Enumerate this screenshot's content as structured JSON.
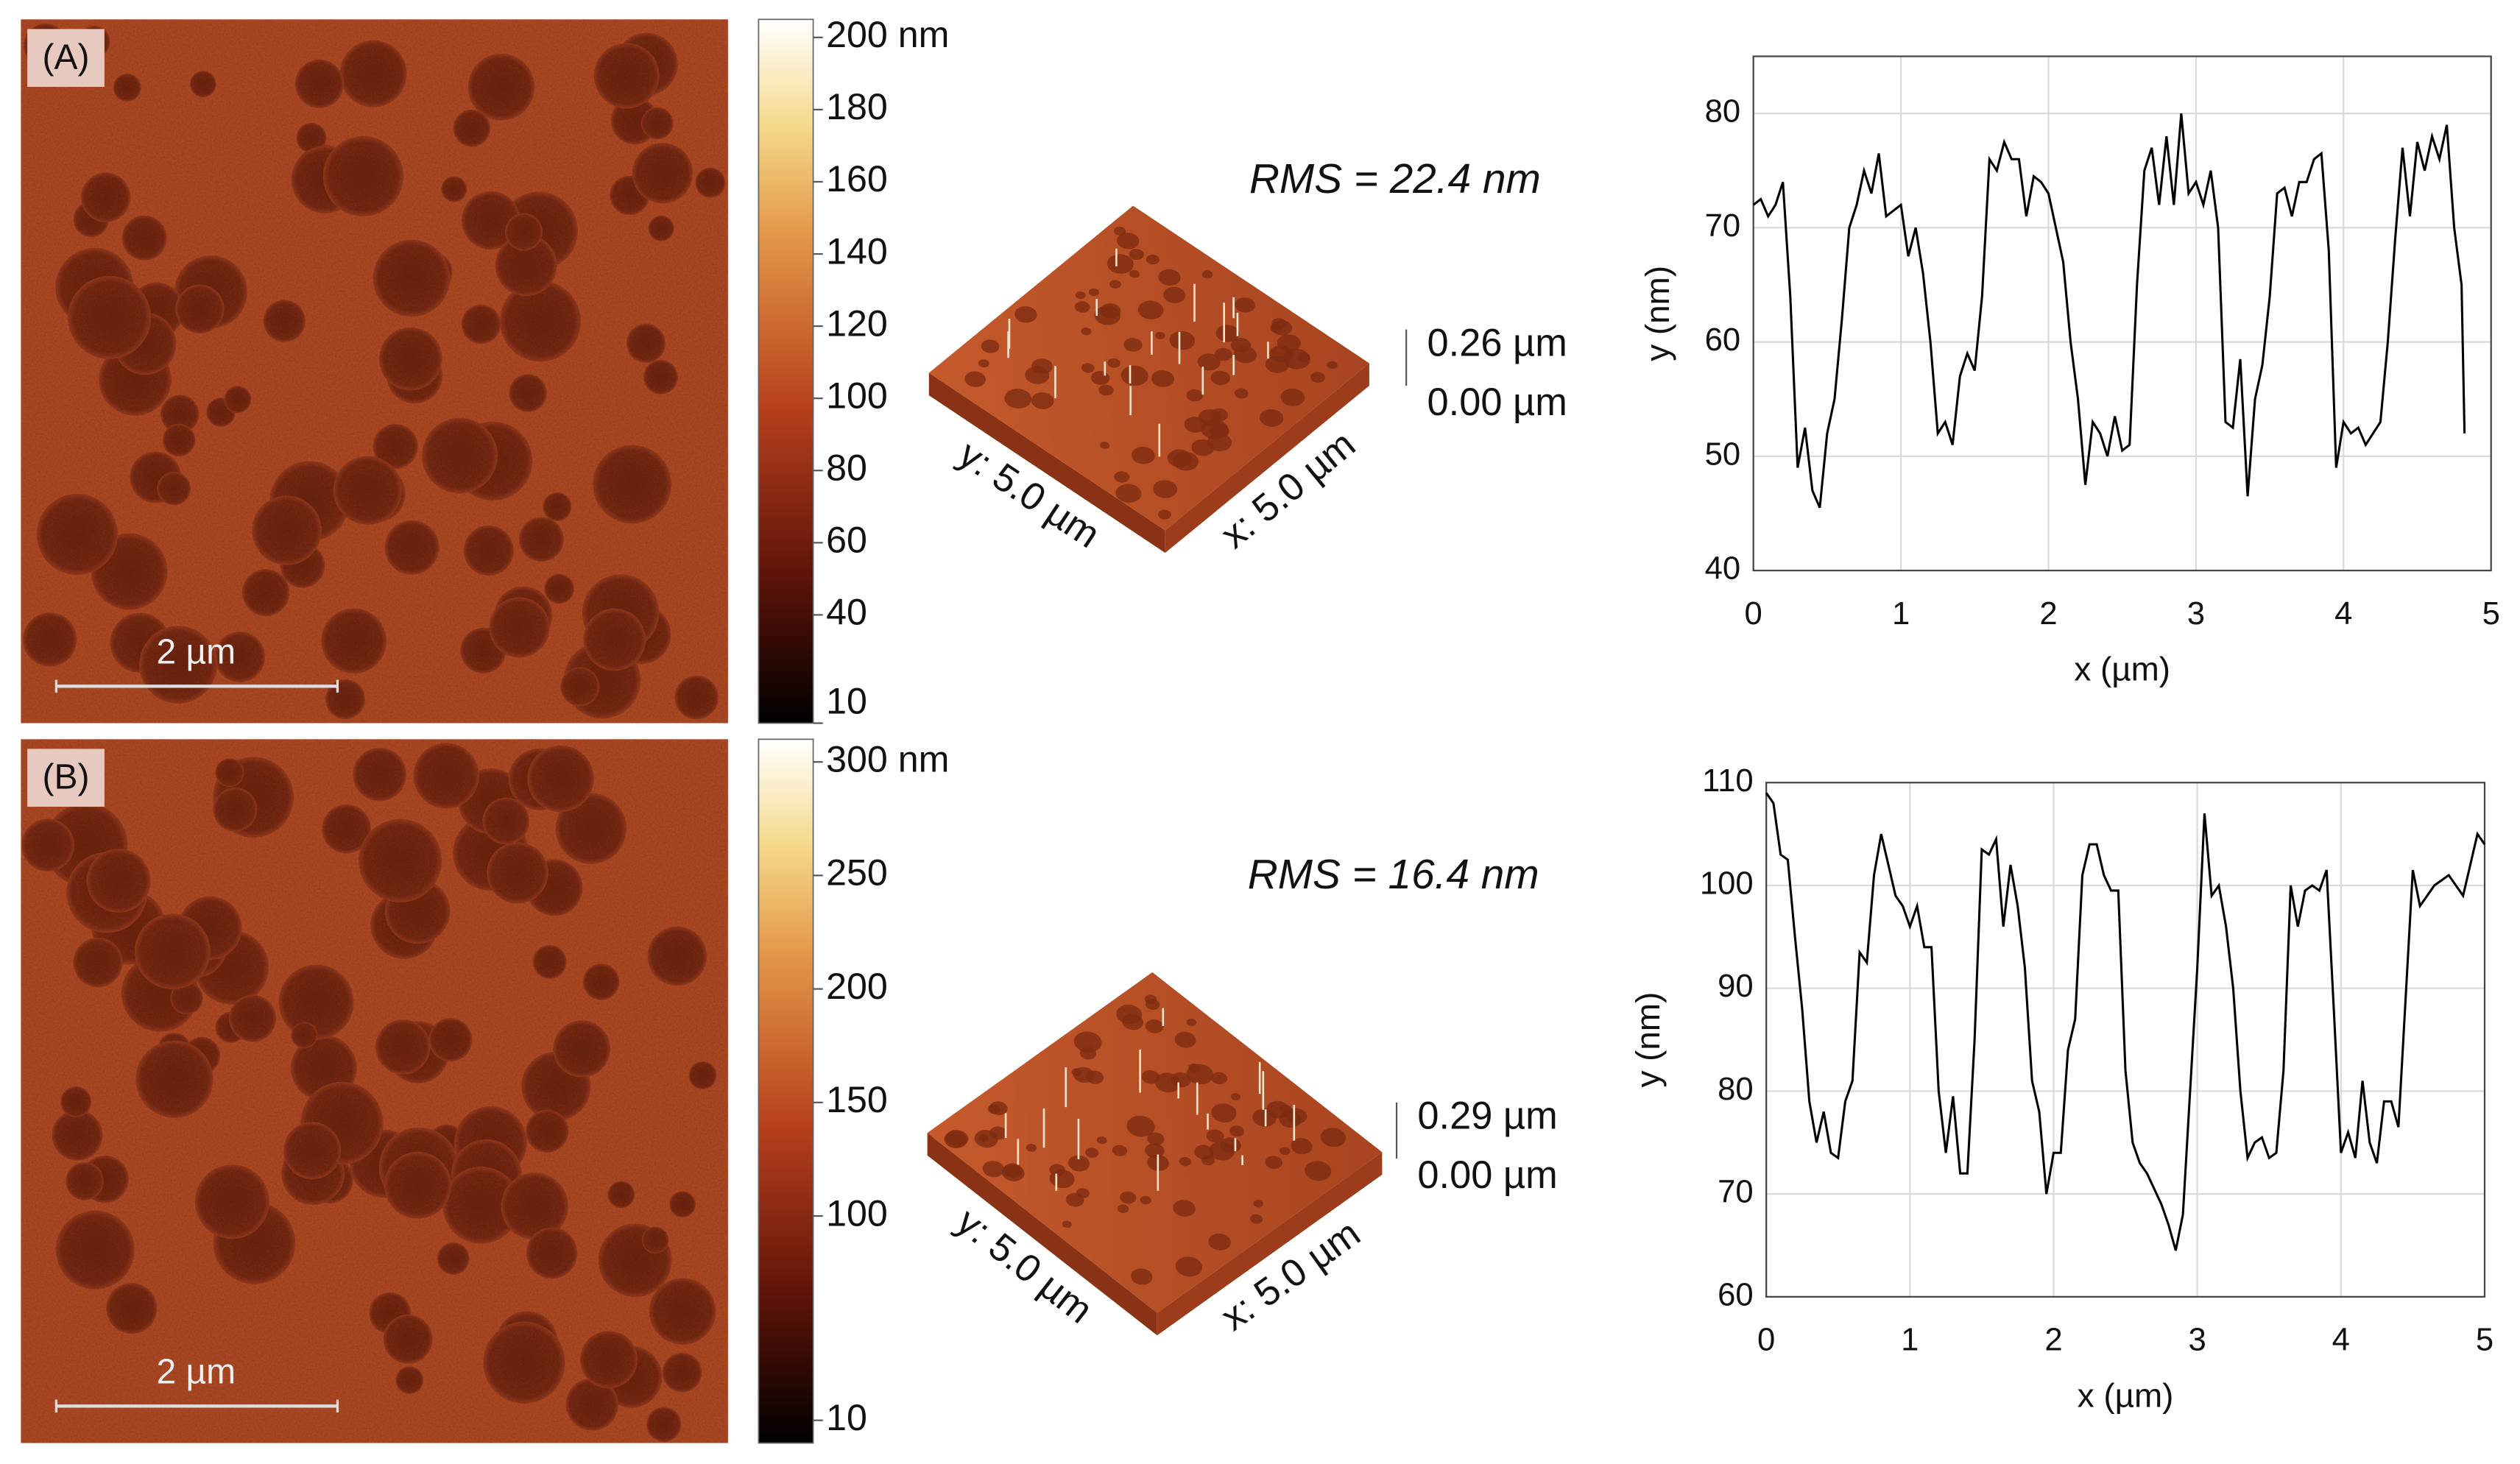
{
  "panels": [
    {
      "label": "(A)",
      "scale_bar": "2 µm",
      "rms": "RMS = 22.4 nm",
      "colorbar": {
        "lim": [
          10,
          205
        ],
        "ticks": [
          {
            "value": 200,
            "label": "200 nm"
          },
          180,
          160,
          140,
          120,
          100,
          80,
          60,
          40,
          10
        ]
      },
      "surface": {
        "z_max": "0.26 µm",
        "z_min": "0.00 µm",
        "x_label": "x: 5.0 µm",
        "y_label": "y: 5.0 µm"
      }
    },
    {
      "label": "(B)",
      "scale_bar": "2 µm",
      "rms": "RMS = 16.4 nm",
      "colorbar": {
        "lim": [
          0,
          310
        ],
        "ticks": [
          {
            "value": 300,
            "label": "300 nm"
          },
          250,
          200,
          150,
          100,
          10
        ]
      },
      "surface": {
        "z_max": "0.29 µm",
        "z_min": "0.00 µm",
        "x_label": "x: 5.0 µm",
        "y_label": "y: 5.0 µm"
      }
    }
  ],
  "chart_data": [
    {
      "type": "line",
      "x_label": "x (µm)",
      "y_label": "y (nm)",
      "xlim": [
        0,
        5
      ],
      "xticks": [
        0,
        1,
        2,
        3,
        4,
        5
      ],
      "ylim": [
        40,
        85
      ],
      "yticks": [
        40,
        50,
        60,
        70,
        80
      ],
      "grid": true,
      "x": [
        0,
        0.05,
        0.1,
        0.15,
        0.2,
        0.25,
        0.3,
        0.35,
        0.4,
        0.45,
        0.5,
        0.55,
        0.6,
        0.65,
        0.7,
        0.75,
        0.8,
        0.85,
        0.9,
        0.95,
        1.0,
        1.05,
        1.1,
        1.15,
        1.2,
        1.25,
        1.3,
        1.35,
        1.4,
        1.45,
        1.5,
        1.55,
        1.6,
        1.65,
        1.7,
        1.75,
        1.8,
        1.85,
        1.9,
        1.95,
        2.0,
        2.05,
        2.1,
        2.15,
        2.2,
        2.25,
        2.3,
        2.35,
        2.4,
        2.45,
        2.5,
        2.55,
        2.6,
        2.65,
        2.7,
        2.75,
        2.8,
        2.85,
        2.9,
        2.95,
        3.0,
        3.05,
        3.1,
        3.15,
        3.2,
        3.25,
        3.3,
        3.35,
        3.4,
        3.45,
        3.5,
        3.55,
        3.6,
        3.65,
        3.7,
        3.75,
        3.8,
        3.85,
        3.9,
        3.95,
        4.0,
        4.05,
        4.1,
        4.15,
        4.2,
        4.25,
        4.3,
        4.35,
        4.4,
        4.45,
        4.5,
        4.55,
        4.6,
        4.65,
        4.7,
        4.75,
        4.8,
        4.82
      ],
      "series": [
        {
          "color": "#000000",
          "values": [
            72,
            72.5,
            71,
            72,
            74,
            64,
            49,
            52.5,
            47,
            45.5,
            52,
            55,
            62,
            70,
            72,
            75,
            73,
            76.5,
            71,
            71.5,
            72,
            67.5,
            70,
            66,
            60,
            52,
            53,
            51,
            57,
            59,
            57.5,
            64,
            76,
            75,
            77.5,
            76,
            76,
            71,
            74.5,
            74,
            73,
            70,
            67,
            60,
            55,
            47.5,
            53,
            52,
            50,
            53.5,
            50.5,
            51,
            65,
            75,
            77,
            72,
            78,
            72,
            80,
            73,
            74,
            72,
            75,
            70,
            53,
            52.5,
            58.5,
            46.5,
            55,
            58,
            64,
            73,
            73.5,
            71,
            74,
            74,
            76,
            76.5,
            68,
            49,
            53,
            52,
            52.5,
            51,
            52,
            53,
            60,
            69,
            77,
            71,
            77.5,
            75,
            78,
            76,
            79,
            70,
            65,
            52
          ]
        }
      ]
    },
    {
      "type": "line",
      "x_label": "x (µm)",
      "y_label": "y (nm)",
      "xlim": [
        0,
        5
      ],
      "xticks": [
        0,
        1,
        2,
        3,
        4,
        5
      ],
      "ylim": [
        60,
        110
      ],
      "yticks": [
        60,
        70,
        80,
        90,
        100,
        110
      ],
      "grid": true,
      "x": [
        0,
        0.05,
        0.1,
        0.15,
        0.2,
        0.25,
        0.3,
        0.35,
        0.4,
        0.45,
        0.5,
        0.55,
        0.6,
        0.65,
        0.7,
        0.75,
        0.8,
        0.85,
        0.9,
        0.95,
        1.0,
        1.05,
        1.1,
        1.15,
        1.2,
        1.25,
        1.3,
        1.35,
        1.4,
        1.45,
        1.5,
        1.55,
        1.6,
        1.65,
        1.7,
        1.75,
        1.8,
        1.85,
        1.9,
        1.95,
        2.0,
        2.05,
        2.1,
        2.15,
        2.2,
        2.25,
        2.3,
        2.35,
        2.4,
        2.45,
        2.5,
        2.55,
        2.6,
        2.65,
        2.7,
        2.75,
        2.8,
        2.85,
        2.9,
        2.95,
        3.0,
        3.05,
        3.1,
        3.15,
        3.2,
        3.25,
        3.3,
        3.35,
        3.4,
        3.45,
        3.5,
        3.55,
        3.6,
        3.65,
        3.7,
        3.75,
        3.8,
        3.85,
        3.9,
        3.95,
        4.0,
        4.05,
        4.1,
        4.15,
        4.2,
        4.25,
        4.3,
        4.35,
        4.4,
        4.5,
        4.55,
        4.65,
        4.75,
        4.85,
        4.9,
        4.95,
        5.0
      ],
      "series": [
        {
          "color": "#000000",
          "values": [
            109,
            108,
            103,
            102.5,
            95,
            88,
            79,
            75,
            78,
            74,
            73.5,
            79,
            81,
            93.5,
            92.5,
            101,
            105,
            102,
            99,
            98,
            96,
            98,
            94,
            94,
            80,
            74,
            79.5,
            72,
            72,
            85,
            103.5,
            103,
            104.5,
            96,
            102,
            98,
            92,
            81,
            78,
            70,
            74,
            74,
            84,
            87,
            101,
            104,
            104,
            101,
            99.5,
            99.5,
            82,
            75,
            73,
            72,
            70.5,
            69,
            67,
            64.5,
            68,
            80,
            92,
            107,
            99,
            100,
            96,
            90,
            80,
            73.5,
            75,
            75.5,
            73.5,
            74,
            82,
            100,
            96,
            99.5,
            100,
            99.5,
            101.5,
            88,
            74,
            76,
            73.5,
            81,
            75,
            73,
            79,
            79,
            76.5,
            101.5,
            98,
            100,
            101,
            99,
            102,
            105,
            104
          ]
        }
      ]
    }
  ]
}
